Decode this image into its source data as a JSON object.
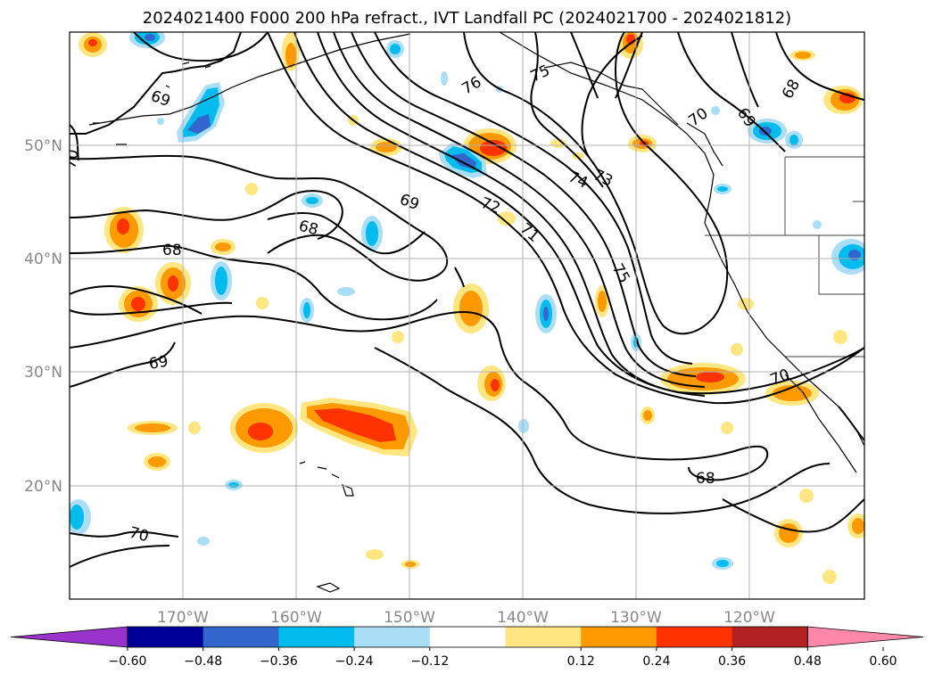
{
  "title": "2024021400 F000 200 hPa refract., IVT Landfall PC (2024021700 - 2024021812)",
  "map": {
    "lon_labels": [
      {
        "lon": -170,
        "text": "170°W"
      },
      {
        "lon": -160,
        "text": "160°W"
      },
      {
        "lon": -150,
        "text": "150°W"
      },
      {
        "lon": -140,
        "text": "140°W"
      },
      {
        "lon": -130,
        "text": "130°W"
      },
      {
        "lon": -120,
        "text": "120°W"
      }
    ],
    "lat_labels": [
      {
        "lat": 50,
        "text": "50°N"
      },
      {
        "lat": 40,
        "text": "40°N"
      },
      {
        "lat": 30,
        "text": "30°N"
      },
      {
        "lat": 20,
        "text": "20°N"
      }
    ],
    "contour_labels": [
      "69",
      "76",
      "75",
      "70",
      "69",
      "68",
      "70",
      "69",
      "72",
      "71",
      "74",
      "73",
      "68",
      "68",
      "75",
      "69",
      "70",
      "68",
      "70"
    ]
  },
  "colorbar": {
    "tick_labels": [
      "−0.60",
      "−0.48",
      "−0.36",
      "−0.24",
      "−0.12",
      "0.12",
      "0.24",
      "0.36",
      "0.48",
      "0.60"
    ],
    "colors": [
      "#9933cc",
      "#000099",
      "#3366cc",
      "#00bbee",
      "#aaddf6",
      "#ffffff",
      "#ffe680",
      "#ff9900",
      "#ff3300",
      "#b22222",
      "#ff88aa"
    ]
  }
}
